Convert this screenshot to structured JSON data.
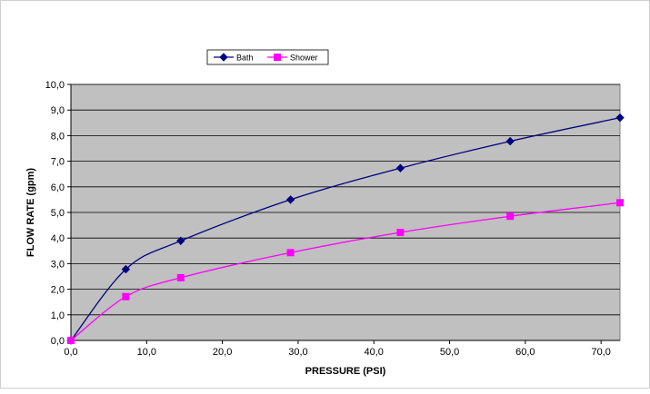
{
  "chart_data": {
    "type": "line",
    "title": "",
    "xlabel": "PRESSURE (PSI)",
    "ylabel": "FLOW RATE (gpm)",
    "xlim": [
      0,
      72.5
    ],
    "ylim": [
      0,
      10
    ],
    "xticks": [
      0,
      10,
      20,
      30,
      40,
      50,
      60,
      70
    ],
    "yticks": [
      0,
      1,
      2,
      3,
      4,
      5,
      6,
      7,
      8,
      9,
      10
    ],
    "xtick_labels": [
      "0,0",
      "10,0",
      "20,0",
      "30,0",
      "40,0",
      "50,0",
      "60,0",
      "70,0"
    ],
    "ytick_labels": [
      "0,0",
      "1,0",
      "2,0",
      "3,0",
      "4,0",
      "5,0",
      "6,0",
      "7,0",
      "8,0",
      "9,0",
      "10,0"
    ],
    "grid": "horizontal",
    "legend_position": "top-left",
    "plot_background": "#c0c0c0",
    "series": [
      {
        "name": "Bath",
        "color": "#000080",
        "marker": "diamond",
        "x": [
          0,
          7.25,
          14.5,
          29,
          43.5,
          58,
          72.5
        ],
        "y": [
          0,
          2.78,
          3.89,
          5.5,
          6.73,
          7.78,
          8.7
        ]
      },
      {
        "name": "Shower",
        "color": "#ff00ff",
        "marker": "square",
        "x": [
          0,
          7.25,
          14.5,
          29,
          43.5,
          58,
          72.5
        ],
        "y": [
          0,
          1.71,
          2.45,
          3.43,
          4.22,
          4.85,
          5.38
        ]
      }
    ]
  }
}
